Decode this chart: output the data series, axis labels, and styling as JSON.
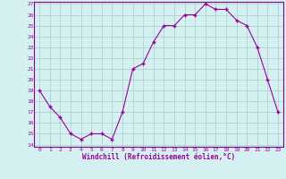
{
  "x": [
    0,
    1,
    2,
    3,
    4,
    5,
    6,
    7,
    8,
    9,
    10,
    11,
    12,
    13,
    14,
    15,
    16,
    17,
    18,
    19,
    20,
    21,
    22,
    23
  ],
  "y": [
    19,
    17.5,
    16.5,
    15,
    14.5,
    15,
    15,
    14.5,
    17,
    21,
    21.5,
    23.5,
    25,
    25,
    26,
    26,
    27,
    26.5,
    26.5,
    25.5,
    25,
    23,
    20,
    17
  ],
  "line_color": "#990099",
  "marker_color": "#990099",
  "bg_color": "#d4f0f0",
  "grid_color": "#aacccc",
  "xlabel": "Windchill (Refroidissement éolien,°C)",
  "xlabel_color": "#990099",
  "tick_color": "#990099",
  "spine_color": "#880088",
  "ylim": [
    14,
    27
  ],
  "xlim": [
    -0.5,
    23.5
  ],
  "yticks": [
    14,
    15,
    16,
    17,
    18,
    19,
    20,
    21,
    22,
    23,
    24,
    25,
    26,
    27
  ],
  "xticks": [
    0,
    1,
    2,
    3,
    4,
    5,
    6,
    7,
    8,
    9,
    10,
    11,
    12,
    13,
    14,
    15,
    16,
    17,
    18,
    19,
    20,
    21,
    22,
    23
  ]
}
